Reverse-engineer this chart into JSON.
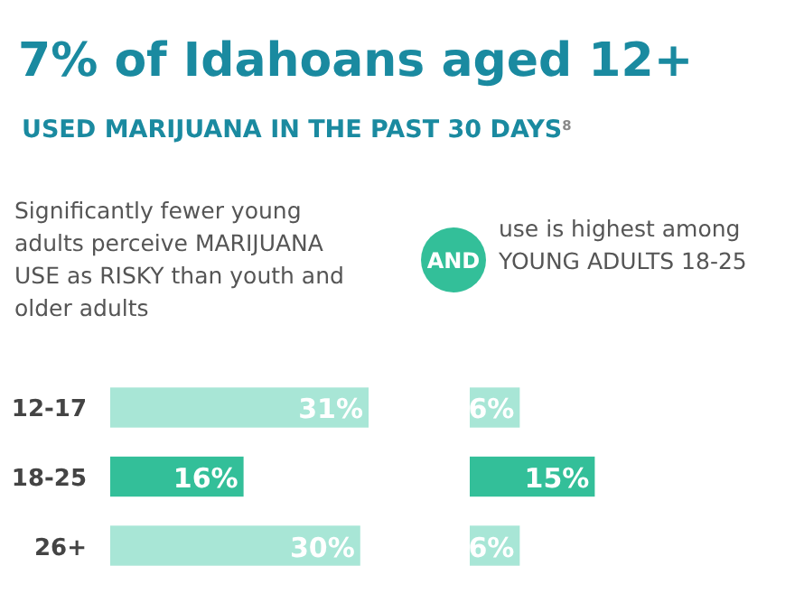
{
  "chart_data": [
    {
      "type": "other",
      "title": "7% of Idahoans aged 12+",
      "subtitle": "USED MARIJUANA IN THE PAST 30 DAYS$^{8}$"
    },
    {
      "type": "bar",
      "orientation": "horizontal",
      "title": "Significantly fewer young adults perceive MARIJUANA USE as RISKY than youth and older adults",
      "categories": [
        "12-17",
        "18-25",
        "26+"
      ],
      "values": [
        31,
        16,
        30
      ],
      "value_labels": [
        "31%",
        "16%",
        "30%"
      ],
      "colors": [
        "#a8e6d6",
        "#33bf99",
        "#a8e6d6"
      ]
    },
    {
      "type": "bar",
      "orientation": "horizontal",
      "title": "use is highest among YOUNG ADULTS 18-25",
      "annotations": [
        "AND"
      ],
      "categories": [
        null,
        null,
        null
      ],
      "values": [
        6,
        15,
        6
      ],
      "value_labels": [
        "6%",
        "15%",
        "6%"
      ],
      "colors": [
        "#a8e6d6",
        "#33bf99",
        "#a8e6d6"
      ]
    }
  ]
}
